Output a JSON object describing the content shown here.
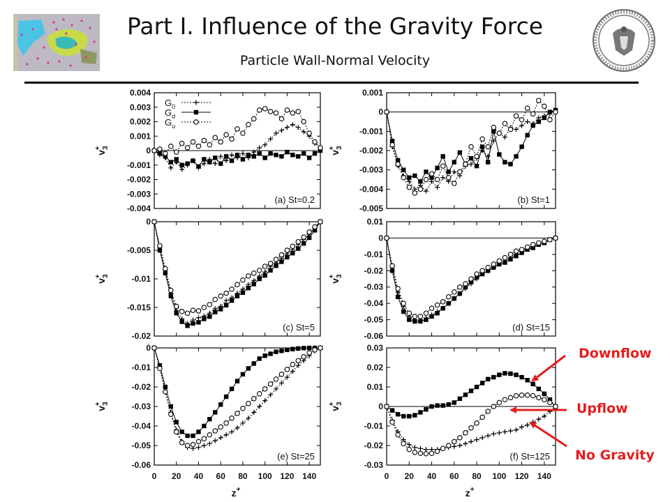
{
  "header": {
    "title": "Part I. Influence of the Gravity Force",
    "subtitle": "Particle Wall-Normal Velocity"
  },
  "legend": {
    "entries": [
      {
        "base": "G",
        "sub": "0",
        "marker": "plus"
      },
      {
        "base": "G",
        "sub": "d",
        "marker": "square"
      },
      {
        "base": "G",
        "sub": "u",
        "marker": "circle"
      }
    ]
  },
  "axis_text": {
    "ylabel_base": "v",
    "ylabel_sub": "3",
    "ylabel_sup": "+",
    "xlabel_base": "z",
    "xlabel_sup": "+"
  },
  "callouts": {
    "downflow": "Downflow",
    "upflow": "Upflow",
    "no_gravity": "No Gravity"
  },
  "colors": {
    "accent": "#e41e1e",
    "line": "#000000"
  },
  "chart_data": [
    {
      "type": "line",
      "panel_label": "(a) St=0.2",
      "xlim": [
        0,
        150
      ],
      "ylim": [
        -0.004,
        0.004
      ],
      "yticks": [
        "0.004",
        "0.003",
        "0.002",
        "0.001",
        "0",
        "-0.001",
        "-0.002",
        "-0.003",
        "-0.004"
      ],
      "ytick_values": [
        0.004,
        0.003,
        0.002,
        0.001,
        0,
        -0.001,
        -0.002,
        -0.003,
        -0.004
      ],
      "zero_line": true,
      "x": [
        0,
        5,
        10,
        15,
        20,
        25,
        30,
        35,
        40,
        45,
        50,
        55,
        60,
        65,
        70,
        75,
        80,
        85,
        90,
        95,
        100,
        105,
        110,
        115,
        120,
        125,
        130,
        135,
        140,
        145,
        150
      ],
      "series": [
        {
          "name": "G0",
          "marker": "plus",
          "values": [
            0,
            -0.0003,
            -0.0005,
            -0.0012,
            -0.0008,
            -0.0013,
            -0.001,
            -0.0007,
            -0.0012,
            -0.0009,
            -0.0006,
            -0.0009,
            -0.0004,
            -0.0007,
            -0.0003,
            -0.0005,
            -0.0002,
            -0.0005,
            -0.0001,
            0.0002,
            0.0004,
            0.0008,
            0.0012,
            0.0014,
            0.0016,
            0.0018,
            0.0016,
            0.0013,
            0.001,
            0.0005,
            0.0002
          ]
        },
        {
          "name": "Gd",
          "marker": "square",
          "values": [
            0,
            -0.0002,
            -0.0004,
            -0.0008,
            -0.0006,
            -0.001,
            -0.0009,
            -0.0007,
            -0.0011,
            -0.0006,
            -0.0008,
            -0.0005,
            -0.0009,
            -0.0004,
            -0.0007,
            -0.0003,
            -0.0006,
            -0.0003,
            -0.0004,
            -0.0002,
            -0.0005,
            -0.0002,
            -0.0003,
            -0.0004,
            -0.0001,
            -0.0003,
            -0.0004,
            -0.0002,
            -0.0005,
            -0.0002,
            0
          ]
        },
        {
          "name": "Gu",
          "marker": "circle",
          "values": [
            0,
            0.0001,
            -0.0002,
            0.0003,
            -0.0001,
            0.0005,
            0.0002,
            0.0006,
            0.0003,
            0.0007,
            0.0004,
            0.0009,
            0.0006,
            0.0011,
            0.0008,
            0.0015,
            0.0012,
            0.0018,
            0.0022,
            0.0028,
            0.0029,
            0.0027,
            0.0026,
            0.0022,
            0.0028,
            0.0026,
            0.0027,
            0.002,
            0.0012,
            0.0006,
            0.0002
          ]
        }
      ]
    },
    {
      "type": "line",
      "panel_label": "(b) St=1",
      "xlim": [
        0,
        150
      ],
      "ylim": [
        -0.005,
        0.001
      ],
      "yticks": [
        "0.001",
        "0",
        "-0.001",
        "-0.002",
        "-0.003",
        "-0.004",
        "-0.005"
      ],
      "ytick_values": [
        0.001,
        0,
        -0.001,
        -0.002,
        -0.003,
        -0.004,
        -0.005
      ],
      "zero_line": true,
      "x": [
        0,
        5,
        10,
        15,
        20,
        25,
        30,
        35,
        40,
        45,
        50,
        55,
        60,
        65,
        70,
        75,
        80,
        85,
        90,
        95,
        100,
        105,
        110,
        115,
        120,
        125,
        130,
        135,
        140,
        145,
        150
      ],
      "series": [
        {
          "name": "G0",
          "marker": "plus",
          "values": [
            0,
            -0.0018,
            -0.0028,
            -0.0033,
            -0.0036,
            -0.004,
            -0.0038,
            -0.0041,
            -0.0036,
            -0.0039,
            -0.0034,
            -0.0036,
            -0.0031,
            -0.0033,
            -0.0028,
            -0.0027,
            -0.0024,
            -0.002,
            -0.0023,
            -0.0015,
            -0.0011,
            -0.0013,
            -0.0008,
            -0.0009,
            -0.0007,
            -0.0005,
            -0.0006,
            -0.0003,
            -0.0002,
            -0.0001,
            0
          ]
        },
        {
          "name": "Gd",
          "marker": "square",
          "values": [
            0,
            -0.0015,
            -0.0025,
            -0.003,
            -0.0034,
            -0.0033,
            -0.0036,
            -0.0031,
            -0.0034,
            -0.0029,
            -0.0023,
            -0.0031,
            -0.0026,
            -0.0021,
            -0.0027,
            -0.0024,
            -0.0028,
            -0.0018,
            -0.0026,
            -0.001,
            -0.0022,
            -0.0026,
            -0.0027,
            -0.0023,
            -0.0018,
            -0.0012,
            -0.0007,
            -0.0005,
            -0.0003,
            0,
            0.0001
          ]
        },
        {
          "name": "Gu",
          "marker": "circle",
          "values": [
            0,
            -0.0017,
            -0.0027,
            -0.0034,
            -0.0039,
            -0.0042,
            -0.004,
            -0.0035,
            -0.0032,
            -0.0035,
            -0.0028,
            -0.0034,
            -0.0037,
            -0.0031,
            -0.0027,
            -0.0018,
            -0.0023,
            -0.0014,
            -0.0018,
            -0.0008,
            -0.0011,
            -0.0006,
            -0.0009,
            -0.0002,
            -0.0004,
            0.0002,
            -0.0001,
            0.0006,
            0.0003,
            -0.0004,
            0
          ]
        }
      ]
    },
    {
      "type": "line",
      "panel_label": "(c) St=5",
      "xlim": [
        0,
        150
      ],
      "ylim": [
        -0.02,
        0
      ],
      "yticks": [
        "0",
        "-0.005",
        "-0.01",
        "-0.015",
        "-0.02"
      ],
      "ytick_values": [
        0,
        -0.005,
        -0.01,
        -0.015,
        -0.02
      ],
      "zero_line": false,
      "x": [
        0,
        5,
        10,
        15,
        20,
        25,
        30,
        35,
        40,
        45,
        50,
        55,
        60,
        65,
        70,
        75,
        80,
        85,
        90,
        95,
        100,
        105,
        110,
        115,
        120,
        125,
        130,
        135,
        140,
        145,
        150
      ],
      "series": [
        {
          "name": "G0",
          "marker": "plus",
          "values": [
            0,
            -0.0045,
            -0.0085,
            -0.0125,
            -0.0155,
            -0.017,
            -0.0178,
            -0.0172,
            -0.0168,
            -0.0165,
            -0.016,
            -0.0152,
            -0.0148,
            -0.0138,
            -0.0133,
            -0.0125,
            -0.0118,
            -0.011,
            -0.0103,
            -0.0095,
            -0.0088,
            -0.0078,
            -0.0072,
            -0.0064,
            -0.0056,
            -0.0049,
            -0.004,
            -0.0031,
            -0.0022,
            -0.0011,
            0
          ]
        },
        {
          "name": "Gd",
          "marker": "square",
          "values": [
            0,
            -0.005,
            -0.009,
            -0.013,
            -0.016,
            -0.0175,
            -0.0182,
            -0.0178,
            -0.0176,
            -0.017,
            -0.0166,
            -0.0158,
            -0.0153,
            -0.0146,
            -0.0138,
            -0.013,
            -0.0124,
            -0.0116,
            -0.0109,
            -0.01,
            -0.0094,
            -0.0085,
            -0.0077,
            -0.007,
            -0.0062,
            -0.0055,
            -0.0047,
            -0.0038,
            -0.0028,
            -0.0015,
            0
          ]
        },
        {
          "name": "Gu",
          "marker": "circle",
          "values": [
            0,
            -0.0042,
            -0.0082,
            -0.012,
            -0.0148,
            -0.0157,
            -0.016,
            -0.0155,
            -0.0156,
            -0.015,
            -0.0145,
            -0.0136,
            -0.013,
            -0.0125,
            -0.0118,
            -0.011,
            -0.0102,
            -0.0095,
            -0.009,
            -0.0085,
            -0.0078,
            -0.0073,
            -0.0066,
            -0.0058,
            -0.005,
            -0.0043,
            -0.0035,
            -0.0027,
            -0.0018,
            -0.0009,
            0
          ]
        }
      ]
    },
    {
      "type": "line",
      "panel_label": "(d) St=15",
      "xlim": [
        0,
        150
      ],
      "ylim": [
        -0.06,
        0.01
      ],
      "yticks": [
        "0.01",
        "0",
        "-0.01",
        "-0.02",
        "-0.03",
        "-0.04",
        "-0.05",
        "-0.06"
      ],
      "ytick_values": [
        0.01,
        0,
        -0.01,
        -0.02,
        -0.03,
        -0.04,
        -0.05,
        -0.06
      ],
      "zero_line": true,
      "x": [
        0,
        5,
        10,
        15,
        20,
        25,
        30,
        35,
        40,
        45,
        50,
        55,
        60,
        65,
        70,
        75,
        80,
        85,
        90,
        95,
        100,
        105,
        110,
        115,
        120,
        125,
        130,
        135,
        140,
        145,
        150
      ],
      "series": [
        {
          "name": "G0",
          "marker": "plus",
          "values": [
            0,
            -0.018,
            -0.033,
            -0.042,
            -0.048,
            -0.05,
            -0.05,
            -0.049,
            -0.047,
            -0.045,
            -0.043,
            -0.04,
            -0.037,
            -0.034,
            -0.031,
            -0.028,
            -0.025,
            -0.022,
            -0.02,
            -0.018,
            -0.016,
            -0.014,
            -0.012,
            -0.01,
            -0.008,
            -0.0065,
            -0.005,
            -0.0035,
            -0.002,
            -0.001,
            0
          ]
        },
        {
          "name": "Gd",
          "marker": "square",
          "values": [
            0,
            -0.02,
            -0.036,
            -0.045,
            -0.05,
            -0.051,
            -0.051,
            -0.05,
            -0.048,
            -0.046,
            -0.043,
            -0.04,
            -0.037,
            -0.034,
            -0.03,
            -0.027,
            -0.024,
            -0.022,
            -0.02,
            -0.018,
            -0.016,
            -0.015,
            -0.013,
            -0.011,
            -0.009,
            -0.007,
            -0.006,
            -0.004,
            -0.003,
            -0.001,
            0
          ]
        },
        {
          "name": "Gu",
          "marker": "circle",
          "values": [
            0,
            -0.017,
            -0.031,
            -0.04,
            -0.046,
            -0.048,
            -0.048,
            -0.046,
            -0.043,
            -0.041,
            -0.039,
            -0.036,
            -0.033,
            -0.03,
            -0.028,
            -0.025,
            -0.022,
            -0.02,
            -0.018,
            -0.016,
            -0.014,
            -0.012,
            -0.01,
            -0.008,
            -0.007,
            -0.0055,
            -0.004,
            -0.003,
            -0.002,
            -0.001,
            0
          ]
        }
      ]
    },
    {
      "type": "line",
      "panel_label": "(e) St=25",
      "xlim": [
        0,
        150
      ],
      "ylim": [
        -0.06,
        0
      ],
      "yticks": [
        "0",
        "-0.01",
        "-0.02",
        "-0.03",
        "-0.04",
        "-0.05",
        "-0.06"
      ],
      "ytick_values": [
        0,
        -0.01,
        -0.02,
        -0.03,
        -0.04,
        -0.05,
        -0.06
      ],
      "zero_line": false,
      "x": [
        0,
        5,
        10,
        15,
        20,
        25,
        30,
        35,
        40,
        45,
        50,
        55,
        60,
        65,
        70,
        75,
        80,
        85,
        90,
        95,
        100,
        105,
        110,
        115,
        120,
        125,
        130,
        135,
        140,
        145,
        150
      ],
      "series": [
        {
          "name": "G0",
          "marker": "plus",
          "values": [
            0,
            -0.01,
            -0.022,
            -0.033,
            -0.042,
            -0.048,
            -0.051,
            -0.0515,
            -0.051,
            -0.05,
            -0.049,
            -0.0475,
            -0.046,
            -0.0445,
            -0.043,
            -0.041,
            -0.0385,
            -0.036,
            -0.033,
            -0.03,
            -0.027,
            -0.024,
            -0.021,
            -0.018,
            -0.015,
            -0.012,
            -0.009,
            -0.0065,
            -0.004,
            -0.0015,
            0
          ]
        },
        {
          "name": "Gd",
          "marker": "square",
          "values": [
            0,
            -0.009,
            -0.02,
            -0.03,
            -0.038,
            -0.043,
            -0.045,
            -0.045,
            -0.043,
            -0.04,
            -0.0365,
            -0.033,
            -0.029,
            -0.025,
            -0.021,
            -0.017,
            -0.0135,
            -0.0105,
            -0.008,
            -0.0055,
            -0.004,
            -0.003,
            -0.002,
            -0.0015,
            -0.001,
            -0.0006,
            -0.0003,
            -0.0001,
            0,
            0,
            0
          ]
        },
        {
          "name": "Gu",
          "marker": "circle",
          "values": [
            0,
            -0.0105,
            -0.0225,
            -0.034,
            -0.043,
            -0.0485,
            -0.05,
            -0.0495,
            -0.048,
            -0.0465,
            -0.0445,
            -0.0425,
            -0.0405,
            -0.0385,
            -0.036,
            -0.0335,
            -0.031,
            -0.0285,
            -0.026,
            -0.0235,
            -0.021,
            -0.0185,
            -0.016,
            -0.0135,
            -0.011,
            -0.0085,
            -0.0065,
            -0.0045,
            -0.0025,
            -0.001,
            0
          ]
        }
      ]
    },
    {
      "type": "line",
      "panel_label": "(f) St=125",
      "xlim": [
        0,
        150
      ],
      "ylim": [
        -0.03,
        0.03
      ],
      "yticks": [
        "0.03",
        "0.02",
        "0.01",
        "0",
        "-0.01",
        "-0.02",
        "-0.03"
      ],
      "ytick_values": [
        0.03,
        0.02,
        0.01,
        0,
        -0.01,
        -0.02,
        -0.03
      ],
      "zero_line": true,
      "x": [
        0,
        5,
        10,
        15,
        20,
        25,
        30,
        35,
        40,
        45,
        50,
        55,
        60,
        65,
        70,
        75,
        80,
        85,
        90,
        95,
        100,
        105,
        110,
        115,
        120,
        125,
        130,
        135,
        140,
        145,
        150
      ],
      "series": [
        {
          "name": "G0",
          "marker": "plus",
          "values": [
            0,
            -0.007,
            -0.013,
            -0.017,
            -0.0195,
            -0.021,
            -0.0215,
            -0.022,
            -0.022,
            -0.022,
            -0.0215,
            -0.021,
            -0.0205,
            -0.02,
            -0.019,
            -0.018,
            -0.017,
            -0.016,
            -0.015,
            -0.014,
            -0.0135,
            -0.013,
            -0.0125,
            -0.012,
            -0.0105,
            -0.0095,
            -0.008,
            -0.0065,
            -0.005,
            -0.0025,
            0
          ]
        },
        {
          "name": "Gd",
          "marker": "square",
          "values": [
            0,
            -0.002,
            -0.004,
            -0.005,
            -0.005,
            -0.0045,
            -0.003,
            -0.0015,
            0,
            0.0005,
            0.0005,
            0.001,
            0.002,
            0.004,
            0.006,
            0.008,
            0.01,
            0.012,
            0.014,
            0.015,
            0.0162,
            0.017,
            0.0168,
            0.0162,
            0.015,
            0.0135,
            0.0115,
            0.009,
            0.0065,
            0.0035,
            0
          ]
        },
        {
          "name": "Gu",
          "marker": "circle",
          "values": [
            0,
            -0.008,
            -0.0145,
            -0.019,
            -0.022,
            -0.0235,
            -0.024,
            -0.0242,
            -0.024,
            -0.023,
            -0.0215,
            -0.02,
            -0.018,
            -0.016,
            -0.0135,
            -0.011,
            -0.0085,
            -0.0055,
            -0.0025,
            0,
            0.002,
            0.0035,
            0.0045,
            0.0055,
            0.0058,
            0.0058,
            0.0055,
            0.0045,
            0.0035,
            0.002,
            0
          ]
        }
      ]
    }
  ],
  "xticks": [
    "0",
    "20",
    "40",
    "60",
    "80",
    "100",
    "120",
    "140"
  ],
  "xtick_values": [
    0,
    20,
    40,
    60,
    80,
    100,
    120,
    140
  ]
}
